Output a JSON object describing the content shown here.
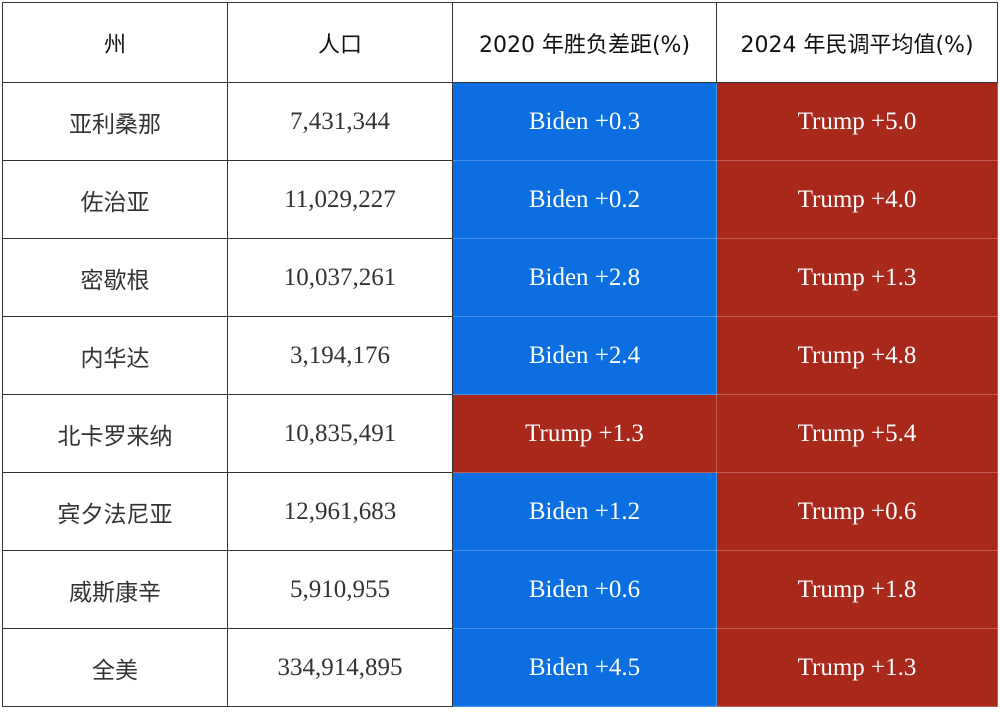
{
  "table": {
    "header": [
      "州",
      "人口",
      "2020 年胜负差距(%)",
      "2024 年民调平均值(%)"
    ],
    "rows": [
      [
        "亚利桑那",
        "7,431,344",
        "Biden +0.3",
        "Trump +5.0"
      ],
      [
        "佐治亚",
        "11,029,227",
        "Biden +0.2",
        "Trump +4.0"
      ],
      [
        "密歇根",
        "10,037,261",
        "Biden +2.8",
        "Trump +1.3"
      ],
      [
        "内华达",
        "3,194,176",
        "Biden +2.4",
        "Trump +4.8"
      ],
      [
        "北卡罗来纳",
        "10,835,491",
        "Trump +1.3",
        "Trump +5.4"
      ],
      [
        "宾夕法尼亚",
        "12,961,683",
        "Biden +1.2",
        "Trump +0.6"
      ],
      [
        "威斯康辛",
        "5,910,955",
        "Biden +0.6",
        "Trump +1.8"
      ],
      [
        "全美",
        "334,914,895",
        "Biden +4.5",
        "Trump +1.3"
      ]
    ],
    "cell_colors": [
      [
        "#0b6fe2",
        "#a8281b"
      ],
      [
        "#0b6fe2",
        "#a8281b"
      ],
      [
        "#0b6fe2",
        "#a8281b"
      ],
      [
        "#0b6fe2",
        "#a8281b"
      ],
      [
        "#a8281b",
        "#a8281b"
      ],
      [
        "#0b6fe2",
        "#a8281b"
      ],
      [
        "#0b6fe2",
        "#a8281b"
      ],
      [
        "#0b6fe2",
        "#a8281b"
      ]
    ]
  }
}
